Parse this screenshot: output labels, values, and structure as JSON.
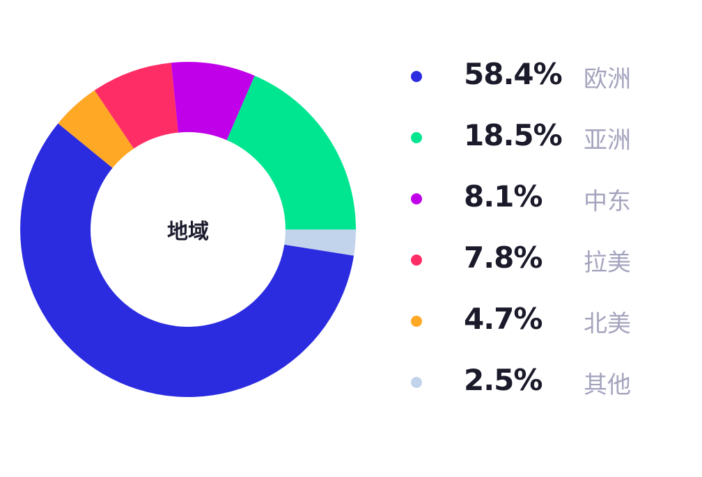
{
  "chart_data": {
    "type": "pie",
    "center_label": "地域",
    "legend_placement": "right",
    "slices": [
      {
        "label": "欧洲",
        "value": 58.4,
        "value_label": "58.4%",
        "color": "#2b2be0"
      },
      {
        "label": "亚洲",
        "value": 18.5,
        "value_label": "18.5%",
        "color": "#00e690"
      },
      {
        "label": "中东",
        "value": 8.1,
        "value_label": "8.1%",
        "color": "#c000e8"
      },
      {
        "label": "拉美",
        "value": 7.8,
        "value_label": "7.8%",
        "color": "#ff2d66"
      },
      {
        "label": "北美",
        "value": 4.7,
        "value_label": "4.7%",
        "color": "#ffa826"
      },
      {
        "label": "其他",
        "value": 2.5,
        "value_label": "2.5%",
        "color": "#c2d4ec"
      }
    ]
  }
}
